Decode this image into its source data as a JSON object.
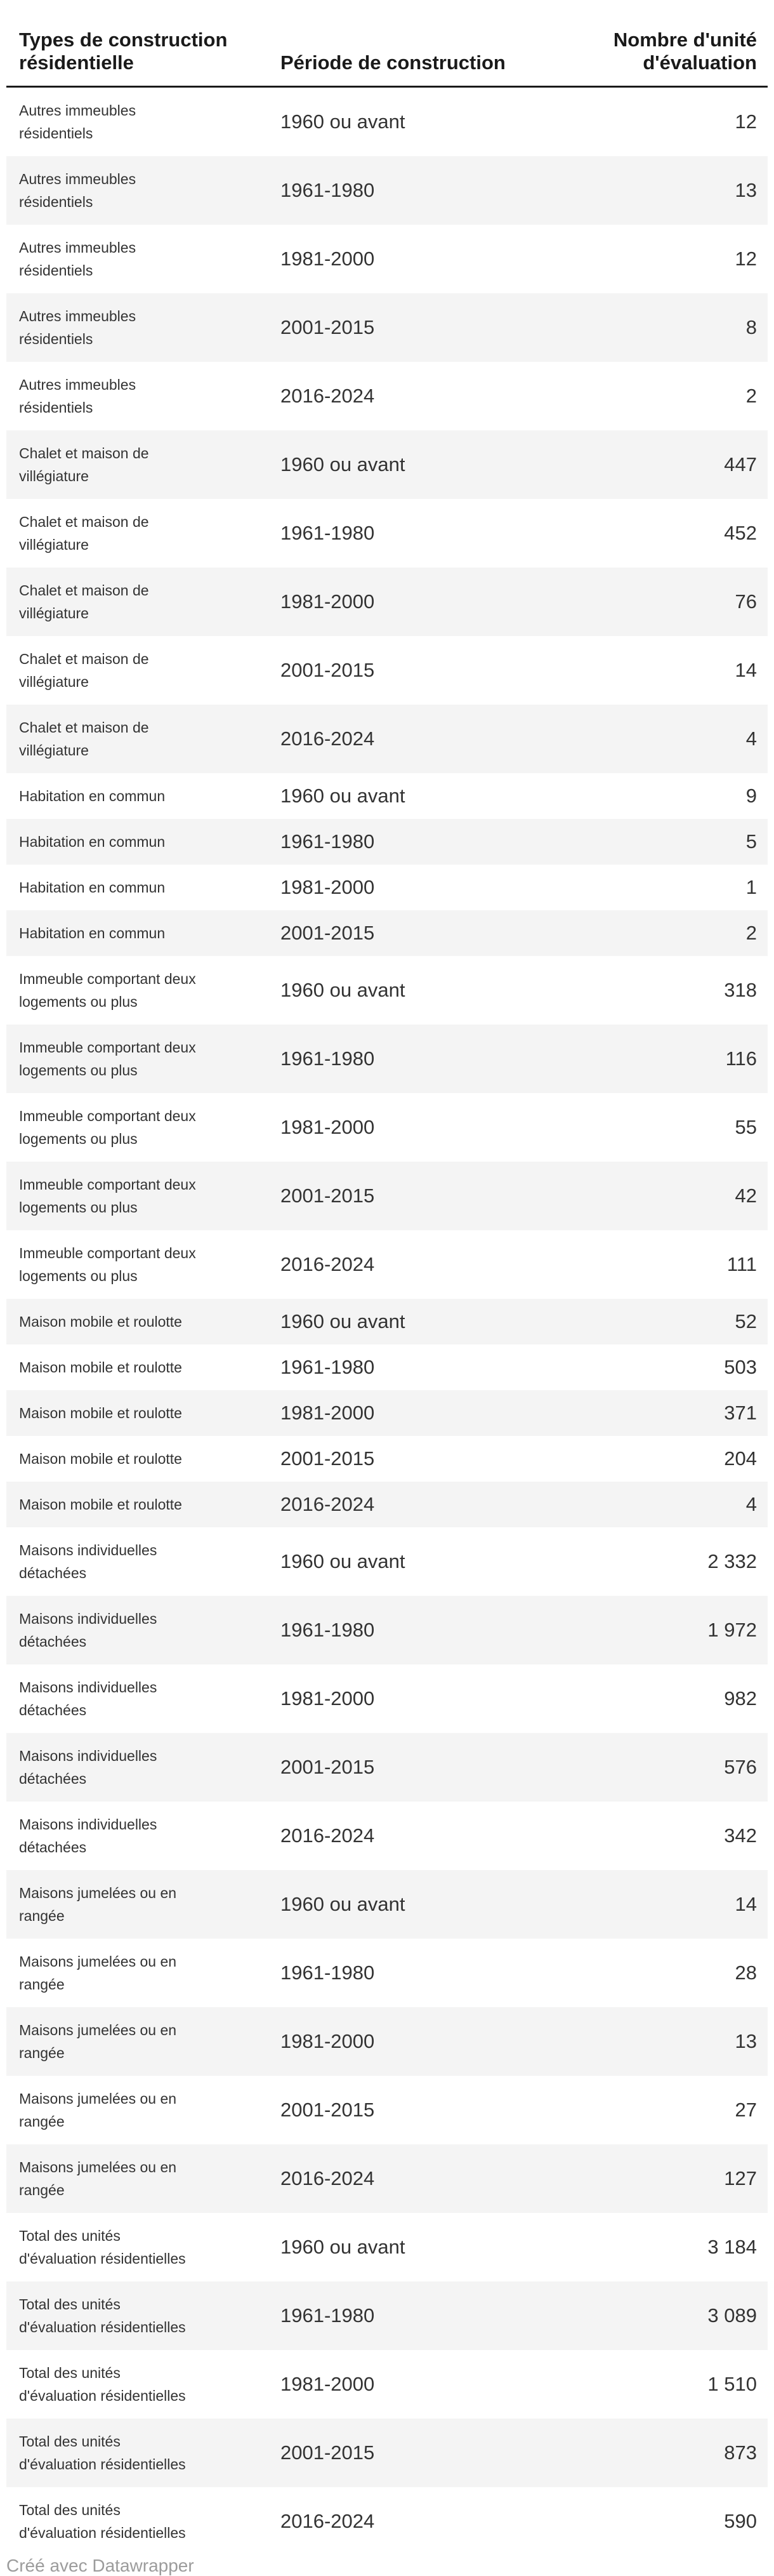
{
  "colors": {
    "stripe": "#f4f4f4",
    "rule": "#1a1a1a",
    "body_text": "#333333",
    "header_text": "#1a1a1a",
    "credit": "#9c9c9c",
    "background": "#ffffff"
  },
  "table": {
    "columns": [
      {
        "label": "Types de construction\nrésidentielle",
        "align": "left"
      },
      {
        "label": "Période de construction",
        "align": "left"
      },
      {
        "label": "Nombre d'unité\nd'évaluation",
        "align": "right"
      }
    ],
    "rows": [
      {
        "type": "Autres immeubles\nrésidentiels",
        "periode": "1960 ou avant",
        "count": "12"
      },
      {
        "type": "Autres immeubles\nrésidentiels",
        "periode": "1961-1980",
        "count": "13"
      },
      {
        "type": "Autres immeubles\nrésidentiels",
        "periode": "1981-2000",
        "count": "12"
      },
      {
        "type": "Autres immeubles\nrésidentiels",
        "periode": "2001-2015",
        "count": "8"
      },
      {
        "type": "Autres immeubles\nrésidentiels",
        "periode": "2016-2024",
        "count": "2"
      },
      {
        "type": "Chalet et maison de\nvillégiature",
        "periode": "1960 ou avant",
        "count": "447"
      },
      {
        "type": "Chalet et maison de\nvillégiature",
        "periode": "1961-1980",
        "count": "452"
      },
      {
        "type": "Chalet et maison de\nvillégiature",
        "periode": "1981-2000",
        "count": "76"
      },
      {
        "type": "Chalet et maison de\nvillégiature",
        "periode": "2001-2015",
        "count": "14"
      },
      {
        "type": "Chalet et maison de\nvillégiature",
        "periode": "2016-2024",
        "count": "4"
      },
      {
        "type": "Habitation en commun",
        "periode": "1960 ou avant",
        "count": "9"
      },
      {
        "type": "Habitation en commun",
        "periode": "1961-1980",
        "count": "5"
      },
      {
        "type": "Habitation en commun",
        "periode": "1981-2000",
        "count": "1"
      },
      {
        "type": "Habitation en commun",
        "periode": "2001-2015",
        "count": "2"
      },
      {
        "type": "Immeuble comportant deux\nlogements ou plus",
        "periode": "1960 ou avant",
        "count": "318"
      },
      {
        "type": "Immeuble comportant deux\nlogements ou plus",
        "periode": "1961-1980",
        "count": "116"
      },
      {
        "type": "Immeuble comportant deux\nlogements ou plus",
        "periode": "1981-2000",
        "count": "55"
      },
      {
        "type": "Immeuble comportant deux\nlogements ou plus",
        "periode": "2001-2015",
        "count": "42"
      },
      {
        "type": "Immeuble comportant deux\nlogements ou plus",
        "periode": "2016-2024",
        "count": "111"
      },
      {
        "type": "Maison mobile et roulotte",
        "periode": "1960 ou avant",
        "count": "52"
      },
      {
        "type": "Maison mobile et roulotte",
        "periode": "1961-1980",
        "count": "503"
      },
      {
        "type": "Maison mobile et roulotte",
        "periode": "1981-2000",
        "count": "371"
      },
      {
        "type": "Maison mobile et roulotte",
        "periode": "2001-2015",
        "count": "204"
      },
      {
        "type": "Maison mobile et roulotte",
        "periode": "2016-2024",
        "count": "4"
      },
      {
        "type": "Maisons individuelles\ndétachées",
        "periode": "1960 ou avant",
        "count": "2 332"
      },
      {
        "type": "Maisons individuelles\ndétachées",
        "periode": "1961-1980",
        "count": "1 972"
      },
      {
        "type": "Maisons individuelles\ndétachées",
        "periode": "1981-2000",
        "count": "982"
      },
      {
        "type": "Maisons individuelles\ndétachées",
        "periode": "2001-2015",
        "count": "576"
      },
      {
        "type": "Maisons individuelles\ndétachées",
        "periode": "2016-2024",
        "count": "342"
      },
      {
        "type": "Maisons jumelées ou en\nrangée",
        "periode": "1960 ou avant",
        "count": "14"
      },
      {
        "type": "Maisons jumelées ou en\nrangée",
        "periode": "1961-1980",
        "count": "28"
      },
      {
        "type": "Maisons jumelées ou en\nrangée",
        "periode": "1981-2000",
        "count": "13"
      },
      {
        "type": "Maisons jumelées ou en\nrangée",
        "periode": "2001-2015",
        "count": "27"
      },
      {
        "type": "Maisons jumelées ou en\nrangée",
        "periode": "2016-2024",
        "count": "127"
      },
      {
        "type": "Total des unités\nd'évaluation résidentielles",
        "periode": "1960 ou avant",
        "count": "3 184"
      },
      {
        "type": "Total des unités\nd'évaluation résidentielles",
        "periode": "1961-1980",
        "count": "3 089"
      },
      {
        "type": "Total des unités\nd'évaluation résidentielles",
        "periode": "1981-2000",
        "count": "1 510"
      },
      {
        "type": "Total des unités\nd'évaluation résidentielles",
        "periode": "2001-2015",
        "count": "873"
      },
      {
        "type": "Total des unités\nd'évaluation résidentielles",
        "periode": "2016-2024",
        "count": "590"
      }
    ]
  },
  "footer": {
    "credit": "Créé avec Datawrapper"
  },
  "chart_data": {
    "type": "table",
    "title": "",
    "columns": [
      "Types de construction résidentielle",
      "Période de construction",
      "Nombre d'unité d'évaluation"
    ],
    "categories": [
      "1960 ou avant",
      "1961-1980",
      "1981-2000",
      "2001-2015",
      "2016-2024"
    ],
    "series": [
      {
        "name": "Autres immeubles résidentiels",
        "values": [
          12,
          13,
          12,
          8,
          2
        ]
      },
      {
        "name": "Chalet et maison de villégiature",
        "values": [
          447,
          452,
          76,
          14,
          4
        ]
      },
      {
        "name": "Habitation en commun",
        "values": [
          9,
          5,
          1,
          2,
          null
        ]
      },
      {
        "name": "Immeuble comportant deux logements ou plus",
        "values": [
          318,
          116,
          55,
          42,
          111
        ]
      },
      {
        "name": "Maison mobile et roulotte",
        "values": [
          52,
          503,
          371,
          204,
          4
        ]
      },
      {
        "name": "Maisons individuelles détachées",
        "values": [
          2332,
          1972,
          982,
          576,
          342
        ]
      },
      {
        "name": "Maisons jumelées ou en rangée",
        "values": [
          14,
          28,
          13,
          27,
          127
        ]
      },
      {
        "name": "Total des unités d'évaluation résidentielles",
        "values": [
          3184,
          3089,
          1510,
          873,
          590
        ]
      }
    ],
    "layout_hints": {
      "striped_rows": true,
      "header_rule": "3px solid dark",
      "value_column_align": "right"
    }
  }
}
